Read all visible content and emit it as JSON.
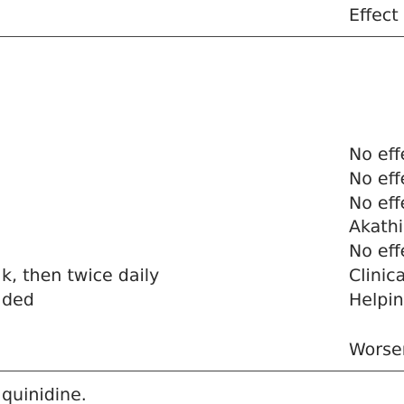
{
  "table": {
    "header": {
      "effect": "Effect"
    },
    "rows": [
      {
        "dose": null,
        "effect": "No effect"
      },
      {
        "dose": null,
        "effect": "No effect"
      },
      {
        "dose": null,
        "effect": "No effect on PBA"
      },
      {
        "dose": null,
        "effect": "Akathisia"
      },
      {
        "dose": null,
        "effect": "No effect"
      },
      {
        "dose": "k, then twice daily",
        "effect": "Clinical global impre"
      },
      {
        "dose": "ded",
        "effect": "Helping partially"
      },
      {
        "dose": null,
        "effect": "Worsened behavior"
      }
    ]
  },
  "footnote": "quinidine."
}
